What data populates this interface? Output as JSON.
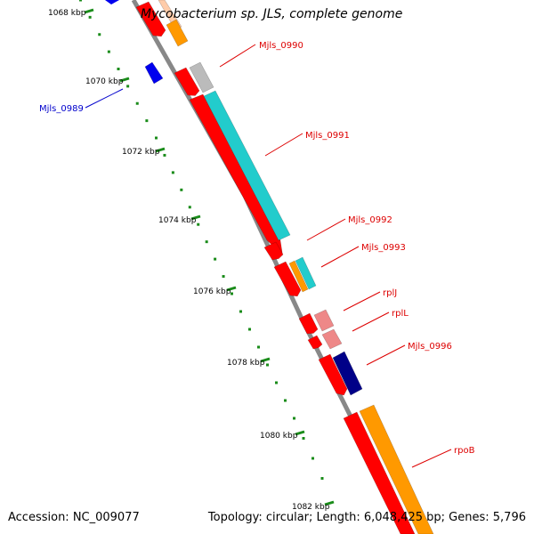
{
  "header": {
    "title": "Mycobacterium sp. JLS, complete genome"
  },
  "footer": {
    "accession": "Accession: NC_009077",
    "summary": "Topology: circular; Length: 6,048,425 bp; Genes: 5,796"
  },
  "colors": {
    "backbone": "#888888",
    "tick": "#1a8c1a",
    "cds_forward": "#ff0000",
    "cds_reverse": "#0000ee",
    "label_red": "#dd0000",
    "label_blue": "#0000cc",
    "cog_orange": "#ff9900",
    "cog_cyan": "#22cccc",
    "cog_gray": "#bbbbbb",
    "cog_pink": "#ee8888",
    "cog_navy": "#000088",
    "cog_peach": "#ffccaa"
  },
  "ticks": [
    {
      "label": "1068 kbp"
    },
    {
      "label": "1070 kbp"
    },
    {
      "label": "1072 kbp"
    },
    {
      "label": "1074 kbp"
    },
    {
      "label": "1076 kbp"
    },
    {
      "label": "1078 kbp"
    },
    {
      "label": "1080 kbp"
    },
    {
      "label": "1082 kbp"
    }
  ],
  "genes": [
    {
      "label": "Mjls_0989",
      "strand": "reverse"
    },
    {
      "label": "Mjls_0990",
      "strand": "forward"
    },
    {
      "label": "Mjls_0991",
      "strand": "forward"
    },
    {
      "label": "Mjls_0992",
      "strand": "forward"
    },
    {
      "label": "Mjls_0993",
      "strand": "forward"
    },
    {
      "label": "rplJ",
      "strand": "forward"
    },
    {
      "label": "rplL",
      "strand": "forward"
    },
    {
      "label": "Mjls_0996",
      "strand": "forward"
    },
    {
      "label": "rpoB",
      "strand": "forward"
    }
  ]
}
